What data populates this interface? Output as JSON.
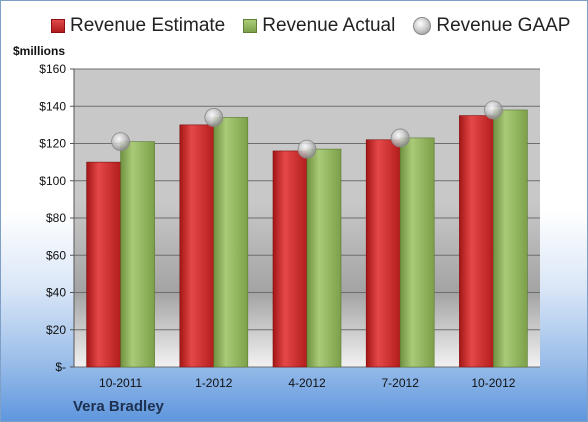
{
  "legend": {
    "estimate": "Revenue Estimate",
    "actual": "Revenue Actual",
    "gaap": "Revenue GAAP"
  },
  "unit_label": "$millions",
  "company": "Vera Bradley",
  "colors": {
    "estimate": "#c62828",
    "actual": "#8db05a",
    "gaap": "#b8b8b8"
  },
  "chart_data": {
    "type": "bar",
    "categories": [
      "10-2011",
      "1-2012",
      "4-2012",
      "7-2012",
      "10-2012"
    ],
    "series": [
      {
        "name": "Revenue Estimate",
        "values": [
          110,
          130,
          116,
          122,
          135
        ]
      },
      {
        "name": "Revenue Actual",
        "values": [
          121,
          134,
          117,
          123,
          138
        ]
      },
      {
        "name": "Revenue GAAP",
        "values": [
          121,
          134,
          117,
          123,
          138
        ],
        "marker": "circle"
      }
    ],
    "ylim": [
      0,
      160
    ],
    "yticks": [
      0,
      20,
      40,
      60,
      80,
      100,
      120,
      140,
      160
    ],
    "ytick_labels": [
      "$-",
      "$20",
      "$40",
      "$60",
      "$80",
      "$100",
      "$120",
      "$140",
      "$160"
    ],
    "ylabel": "$millions",
    "grid": true,
    "legend_position": "top"
  }
}
